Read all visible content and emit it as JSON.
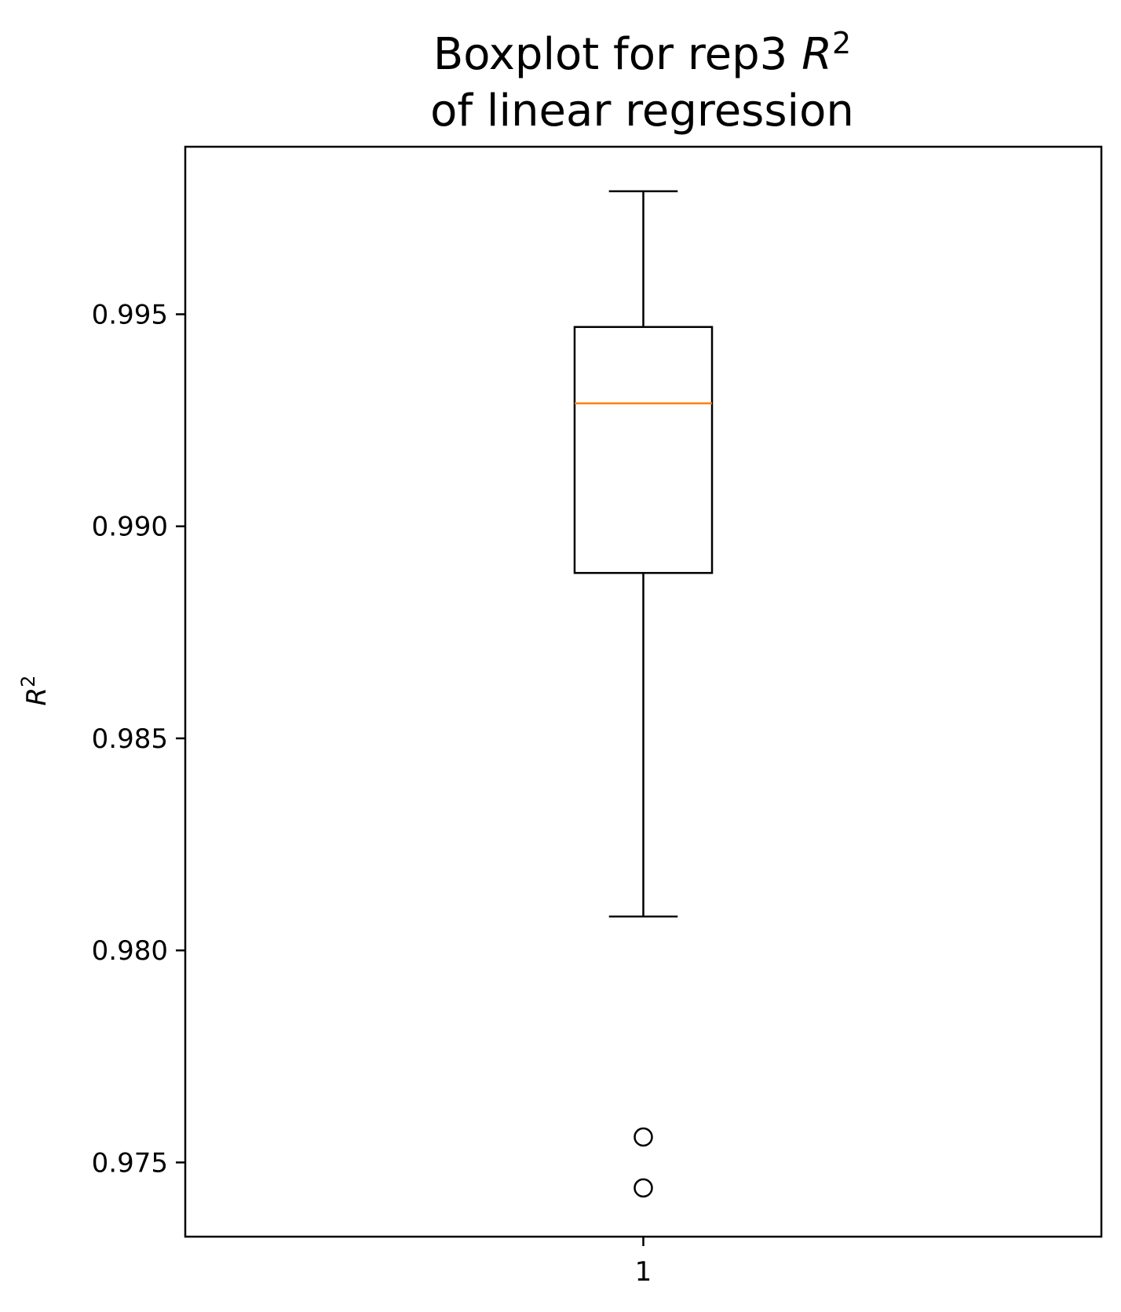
{
  "chart_data": {
    "type": "box",
    "title": {
      "line1_prefix": "Boxplot for rep3 ",
      "line1_var": "R",
      "line1_sup": "2",
      "line2": "of linear regression"
    },
    "ylabel": {
      "var": "R",
      "sup": "2"
    },
    "xlabel": "",
    "categories": [
      "1"
    ],
    "ylim": [
      0.97325,
      0.99895
    ],
    "yticks": [
      0.975,
      0.98,
      0.985,
      0.99,
      0.995
    ],
    "ytick_labels": [
      "0.975",
      "0.980",
      "0.985",
      "0.990",
      "0.995"
    ],
    "boxes": [
      {
        "category": "1",
        "whisker_low": 0.9808,
        "q1": 0.9889,
        "median": 0.9929,
        "q3": 0.9947,
        "whisker_high": 0.9979,
        "outliers": [
          0.9756,
          0.9744
        ]
      }
    ],
    "grid": false,
    "colors": {
      "box": "#000000",
      "median": "#ff7f0e",
      "outlier": "#000000"
    }
  }
}
